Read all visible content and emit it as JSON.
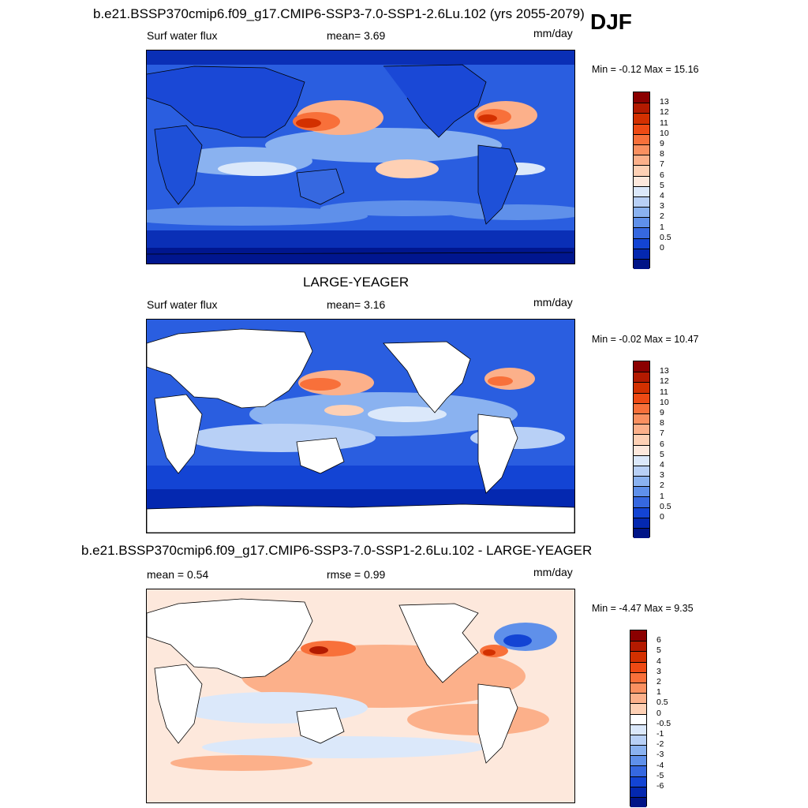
{
  "season": "DJF",
  "panels": [
    {
      "title": "b.e21.BSSP370cmip6.f09_g17.CMIP6-SSP3-7.0-SSP1-2.6Lu.102 (yrs 2055-2079)",
      "left_label": "Surf water flux",
      "mid_label": "mean=   3.69",
      "unit": "mm/day",
      "minmax": "Min =  -0.12 Max =  15.16",
      "colorbar": {
        "labels": [
          "13",
          "12",
          "11",
          "10",
          "9",
          "8",
          "7",
          "6",
          "5",
          "4",
          "3",
          "2",
          "1",
          "0.5",
          "0"
        ],
        "colors": [
          "#8b0000",
          "#b31a00",
          "#d33000",
          "#ee4a14",
          "#f8703a",
          "#fa9060",
          "#fcb08a",
          "#fed0b4",
          "#fde8dc",
          "#dbe8fa",
          "#b8d0f6",
          "#8ab2f0",
          "#5f90ea",
          "#3668e0",
          "#1344d4",
          "#0428b0",
          "#001487"
        ]
      }
    },
    {
      "title": "LARGE-YEAGER",
      "left_label": "Surf water flux",
      "mid_label": "mean=   3.16",
      "unit": "mm/day",
      "minmax": "Min =  -0.02 Max =  10.47",
      "colorbar": {
        "labels": [
          "13",
          "12",
          "11",
          "10",
          "9",
          "8",
          "7",
          "6",
          "5",
          "4",
          "3",
          "2",
          "1",
          "0.5",
          "0"
        ],
        "colors": [
          "#8b0000",
          "#b31a00",
          "#d33000",
          "#ee4a14",
          "#f8703a",
          "#fa9060",
          "#fcb08a",
          "#fed0b4",
          "#fde8dc",
          "#dbe8fa",
          "#b8d0f6",
          "#8ab2f0",
          "#5f90ea",
          "#3668e0",
          "#1344d4",
          "#0428b0",
          "#001487"
        ]
      }
    },
    {
      "title": "b.e21.BSSP370cmip6.f09_g17.CMIP6-SSP3-7.0-SSP1-2.6Lu.102 - LARGE-YEAGER",
      "left_label": "mean =   0.54",
      "mid_label": "rmse =   0.99",
      "unit": "mm/day",
      "minmax": "Min =  -4.47 Max =   9.35",
      "colorbar": {
        "labels": [
          "6",
          "5",
          "4",
          "3",
          "2",
          "1",
          "0.5",
          "0",
          "-0.5",
          "-1",
          "-2",
          "-3",
          "-4",
          "-5",
          "-6"
        ],
        "colors": [
          "#8b0000",
          "#b31a00",
          "#d33000",
          "#ee4a14",
          "#f8703a",
          "#fa9060",
          "#fcb08a",
          "#fed0b4",
          "#ffffff",
          "#dbe8fa",
          "#b8d0f6",
          "#8ab2f0",
          "#5f90ea",
          "#3668e0",
          "#1344d4",
          "#0428b0",
          "#001487"
        ]
      }
    }
  ]
}
